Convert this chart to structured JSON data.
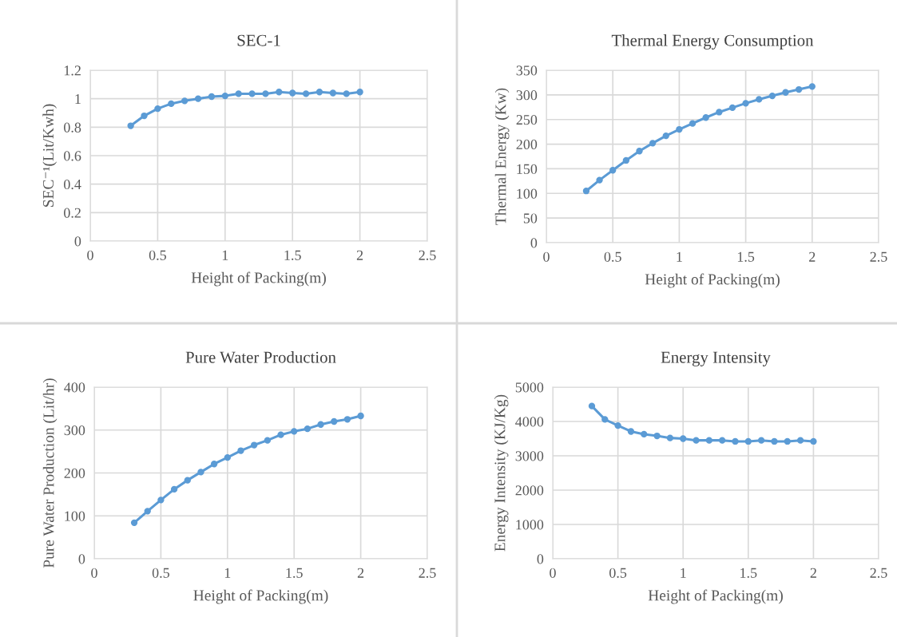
{
  "chart_data": [
    {
      "type": "line",
      "title": "SEC-1",
      "xlabel": "Height of Packing(m)",
      "ylabel": "SEC⁻¹(Lit/Kwh)",
      "xlim": [
        0,
        2.5
      ],
      "xticks": [
        0,
        0.5,
        1,
        1.5,
        2,
        2.5
      ],
      "ylim": [
        0,
        1.2
      ],
      "yticks": [
        0,
        0.2,
        0.4,
        0.6,
        0.8,
        1,
        1.2
      ],
      "grid": true,
      "marker": "circle",
      "x": [
        0.3,
        0.4,
        0.5,
        0.6,
        0.7,
        0.8,
        0.9,
        1.0,
        1.1,
        1.2,
        1.3,
        1.4,
        1.5,
        1.6,
        1.7,
        1.8,
        1.9,
        2.0
      ],
      "series": [
        {
          "color": "#5b9bd5",
          "values": [
            0.81,
            0.88,
            0.93,
            0.965,
            0.985,
            1.0,
            1.015,
            1.02,
            1.035,
            1.035,
            1.035,
            1.047,
            1.04,
            1.035,
            1.047,
            1.04,
            1.035,
            1.047
          ]
        }
      ]
    },
    {
      "type": "line",
      "title": "Thermal Energy Consumption",
      "xlabel": "Height of Packing(m)",
      "ylabel": "Thermal Energy (Kw)",
      "xlim": [
        0,
        2.5
      ],
      "xticks": [
        0,
        0.5,
        1,
        1.5,
        2,
        2.5
      ],
      "ylim": [
        0,
        350
      ],
      "yticks": [
        0,
        50,
        100,
        150,
        200,
        250,
        300,
        350
      ],
      "grid": true,
      "marker": "circle",
      "x": [
        0.3,
        0.4,
        0.5,
        0.6,
        0.7,
        0.8,
        0.9,
        1.0,
        1.1,
        1.2,
        1.3,
        1.4,
        1.5,
        1.6,
        1.7,
        1.8,
        1.9,
        2.0
      ],
      "series": [
        {
          "color": "#5b9bd5",
          "values": [
            105,
            127,
            147,
            167,
            186,
            202,
            217,
            230,
            242,
            254,
            265,
            274,
            283,
            291,
            298,
            305,
            311,
            317
          ]
        }
      ]
    },
    {
      "type": "line",
      "title": "Pure Water Production",
      "xlabel": "Height of Packing(m)",
      "ylabel": "Pure Water Production (Lit/hr)",
      "xlim": [
        0,
        2.5
      ],
      "xticks": [
        0,
        0.5,
        1,
        1.5,
        2,
        2.5
      ],
      "ylim": [
        0,
        400
      ],
      "yticks": [
        0,
        100,
        200,
        300,
        400
      ],
      "grid": true,
      "marker": "circle",
      "x": [
        0.3,
        0.4,
        0.5,
        0.6,
        0.7,
        0.8,
        0.9,
        1.0,
        1.1,
        1.2,
        1.3,
        1.4,
        1.5,
        1.6,
        1.7,
        1.8,
        1.9,
        2.0
      ],
      "series": [
        {
          "color": "#5b9bd5",
          "values": [
            84,
            111,
            137,
            162,
            183,
            202,
            221,
            236,
            252,
            265,
            276,
            289,
            297,
            303,
            313,
            320,
            325,
            333
          ]
        }
      ]
    },
    {
      "type": "line",
      "title": "Energy Intensity",
      "xlabel": "Height of Packing(m)",
      "ylabel": "Energy Intensity (KJ/Kg)",
      "xlim": [
        0,
        2.5
      ],
      "xticks": [
        0,
        0.5,
        1,
        1.5,
        2,
        2.5
      ],
      "ylim": [
        0,
        5000
      ],
      "yticks": [
        0,
        1000,
        2000,
        3000,
        4000,
        5000
      ],
      "grid": true,
      "marker": "circle",
      "x": [
        0.3,
        0.4,
        0.5,
        0.6,
        0.7,
        0.8,
        0.9,
        1.0,
        1.1,
        1.2,
        1.3,
        1.4,
        1.5,
        1.6,
        1.7,
        1.8,
        1.9,
        2.0
      ],
      "series": [
        {
          "color": "#5b9bd5",
          "values": [
            4450,
            4060,
            3880,
            3710,
            3630,
            3580,
            3520,
            3500,
            3450,
            3450,
            3450,
            3420,
            3420,
            3450,
            3420,
            3420,
            3450,
            3420
          ]
        }
      ]
    }
  ]
}
